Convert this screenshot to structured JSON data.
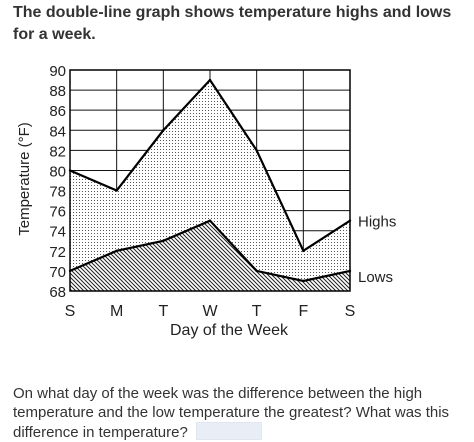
{
  "intro_text": "The double-line graph shows temperature highs and lows for a week.",
  "question_text": "On what day of the week was the difference between the high temperature and the low temperature the greatest? What was this difference in temperature?",
  "chart_data": {
    "type": "area",
    "title": "",
    "xlabel": "Day of the Week",
    "ylabel": "Temperature (°F)",
    "categories": [
      "S",
      "M",
      "T",
      "W",
      "T",
      "F",
      "S"
    ],
    "ylim": [
      68,
      90
    ],
    "yticks": [
      68,
      70,
      72,
      74,
      76,
      78,
      80,
      82,
      84,
      86,
      88,
      90
    ],
    "grid": true,
    "series": [
      {
        "name": "Highs",
        "values": [
          80,
          78,
          84,
          89,
          82,
          72,
          75
        ]
      },
      {
        "name": "Lows",
        "values": [
          70,
          72,
          73,
          75,
          70,
          69,
          70
        ]
      }
    ]
  }
}
